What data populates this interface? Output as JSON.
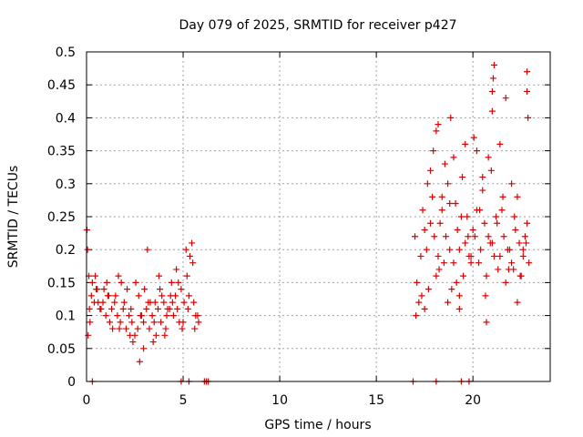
{
  "chart_data": {
    "type": "scatter",
    "title": "Day 079 of 2025, SRMTID for receiver p427",
    "xlabel": "GPS time / hours",
    "ylabel": "SRMTID / TECUs",
    "xlim": [
      0,
      24
    ],
    "ylim": [
      0,
      0.5
    ],
    "grid": true,
    "marker": "+",
    "color": "#dd0000",
    "xticks": [
      0,
      5,
      10,
      15,
      20
    ],
    "xtick_labels": [
      "0",
      "5",
      "10",
      "15",
      "20"
    ],
    "yticks": [
      0,
      0.05,
      0.1,
      0.15,
      0.2,
      0.25,
      0.3,
      0.35,
      0.4,
      0.45,
      0.5
    ],
    "ytick_labels": [
      "0",
      "0.05",
      "0.1",
      "0.15",
      "0.2",
      "0.25",
      "0.3",
      "0.35",
      "0.4",
      "0.45",
      "0.5"
    ],
    "series": [
      {
        "name": "SRMTID",
        "x": [
          0.05,
          0.12,
          0.25,
          0.4,
          0.55,
          0.7,
          0.85,
          1.0,
          1.15,
          1.3,
          1.45,
          1.6,
          1.75,
          1.9,
          2.05,
          2.2,
          2.35,
          2.5,
          2.65,
          2.8,
          2.95,
          3.1,
          3.25,
          3.4,
          3.55,
          3.7,
          3.85,
          4.0,
          4.15,
          4.3,
          4.45,
          4.6,
          4.75,
          4.9,
          5.05,
          5.2,
          5.35,
          5.5,
          5.65,
          5.8,
          0.08,
          0.3,
          0.6,
          0.9,
          1.2,
          1.5,
          1.8,
          2.1,
          2.4,
          2.7,
          2.95,
          3.2,
          3.5,
          3.8,
          4.1,
          4.4,
          4.7,
          5.0,
          5.3,
          5.6,
          0.02,
          0.18,
          0.45,
          0.75,
          1.05,
          1.35,
          1.65,
          1.95,
          2.25,
          2.55,
          2.85,
          3.15,
          3.45,
          3.75,
          4.05,
          4.35,
          4.65,
          4.95,
          5.25,
          5.55,
          0.15,
          0.5,
          1.1,
          1.7,
          2.3,
          2.75,
          3.0,
          3.3,
          3.6,
          3.9,
          4.2,
          4.5,
          4.8,
          5.15,
          5.45,
          5.75,
          17.0,
          17.2,
          17.4,
          17.6,
          17.8,
          18.0,
          18.2,
          18.4,
          18.6,
          18.8,
          19.0,
          19.2,
          19.4,
          19.6,
          19.8,
          20.0,
          20.2,
          20.4,
          20.6,
          20.8,
          21.0,
          21.2,
          21.4,
          21.6,
          21.8,
          22.0,
          22.2,
          22.4,
          22.6,
          22.8,
          17.1,
          17.3,
          17.5,
          17.7,
          17.9,
          18.1,
          18.3,
          18.5,
          18.7,
          18.9,
          19.1,
          19.3,
          19.5,
          19.7,
          19.9,
          20.1,
          20.3,
          20.5,
          20.7,
          20.9,
          21.1,
          21.3,
          21.5,
          21.7,
          21.9,
          22.1,
          22.3,
          22.5,
          22.7,
          22.9,
          17.05,
          17.35,
          17.65,
          17.95,
          18.25,
          18.55,
          18.85,
          19.15,
          19.45,
          19.75,
          20.05,
          20.35,
          20.65,
          20.95,
          21.25,
          21.55,
          21.85,
          22.15,
          22.45,
          22.75,
          17.5,
          17.8,
          18.1,
          18.4,
          18.7,
          19.0,
          19.3,
          19.6,
          19.9,
          20.2,
          20.5,
          20.8,
          21.0,
          21.1,
          21.4,
          21.7,
          22.0,
          22.3,
          22.6,
          22.8,
          0.3,
          4.9,
          5.3,
          6.1,
          6.2,
          6.3,
          16.9,
          18.1,
          19.4,
          19.8,
          18.2,
          18.8,
          19.3,
          21.0,
          21.05,
          22.8,
          22.85,
          20.7
        ],
        "y": [
          0.2,
          0.16,
          0.13,
          0.12,
          0.14,
          0.11,
          0.12,
          0.1,
          0.13,
          0.11,
          0.12,
          0.1,
          0.09,
          0.11,
          0.08,
          0.1,
          0.09,
          0.07,
          0.08,
          0.1,
          0.09,
          0.11,
          0.08,
          0.1,
          0.12,
          0.11,
          0.09,
          0.12,
          0.1,
          0.11,
          0.12,
          0.13,
          0.15,
          0.14,
          0.12,
          0.16,
          0.19,
          0.18,
          0.1,
          0.09,
          0.07,
          0.15,
          0.12,
          0.14,
          0.09,
          0.13,
          0.15,
          0.14,
          0.06,
          0.13,
          0.05,
          0.12,
          0.09,
          0.14,
          0.08,
          0.15,
          0.11,
          0.09,
          0.13,
          0.08,
          0.23,
          0.09,
          0.16,
          0.11,
          0.15,
          0.08,
          0.16,
          0.12,
          0.07,
          0.15,
          0.1,
          0.2,
          0.06,
          0.16,
          0.07,
          0.13,
          0.17,
          0.08,
          0.11,
          0.12,
          0.11,
          0.14,
          0.13,
          0.08,
          0.11,
          0.03,
          0.14,
          0.12,
          0.07,
          0.13,
          0.11,
          0.1,
          0.09,
          0.2,
          0.21,
          0.1,
          0.22,
          0.12,
          0.26,
          0.2,
          0.24,
          0.22,
          0.19,
          0.26,
          0.22,
          0.2,
          0.18,
          0.23,
          0.25,
          0.21,
          0.19,
          0.23,
          0.26,
          0.2,
          0.24,
          0.22,
          0.21,
          0.25,
          0.19,
          0.22,
          0.2,
          0.18,
          0.23,
          0.21,
          0.19,
          0.24,
          0.15,
          0.19,
          0.23,
          0.14,
          0.28,
          0.16,
          0.24,
          0.18,
          0.3,
          0.14,
          0.27,
          0.2,
          0.16,
          0.25,
          0.19,
          0.22,
          0.18,
          0.29,
          0.16,
          0.21,
          0.19,
          0.17,
          0.26,
          0.15,
          0.2,
          0.17,
          0.28,
          0.16,
          0.22,
          0.18,
          0.1,
          0.13,
          0.3,
          0.35,
          0.17,
          0.33,
          0.4,
          0.15,
          0.31,
          0.22,
          0.37,
          0.26,
          0.13,
          0.32,
          0.24,
          0.28,
          0.17,
          0.25,
          0.16,
          0.21,
          0.11,
          0.32,
          0.38,
          0.28,
          0.12,
          0.34,
          0.11,
          0.36,
          0.18,
          0.35,
          0.31,
          0.34,
          0.44,
          0.48,
          0.36,
          0.43,
          0.3,
          0.12,
          0.2,
          0.47,
          0.0,
          0.0,
          0.0,
          0.0,
          0.0,
          0.0,
          0.0,
          0.0,
          0.0,
          0.0,
          0.39,
          0.27,
          0.13,
          0.41,
          0.46,
          0.44,
          0.4,
          0.09
        ]
      }
    ]
  }
}
